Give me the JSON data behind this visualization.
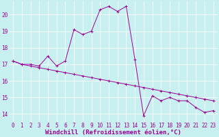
{
  "xlabel": "Windchill (Refroidissement éolien,°C)",
  "ylabel": "",
  "background_color": "#c8f0f0",
  "grid_color": "#ffffff",
  "line_color": "#990099",
  "xlim": [
    -0.5,
    23.5
  ],
  "ylim": [
    13.5,
    20.8
  ],
  "xticks": [
    0,
    1,
    2,
    3,
    4,
    5,
    6,
    7,
    8,
    9,
    10,
    11,
    12,
    13,
    14,
    15,
    16,
    17,
    18,
    19,
    20,
    21,
    22,
    23
  ],
  "yticks": [
    14,
    15,
    16,
    17,
    18,
    19,
    20
  ],
  "series1_x": [
    0,
    1,
    2,
    3,
    4,
    5,
    6,
    7,
    8,
    9,
    10,
    11,
    12,
    13,
    14,
    15,
    16,
    17,
    18,
    19,
    20,
    21,
    22,
    23
  ],
  "series1_y": [
    17.2,
    17.0,
    17.0,
    16.9,
    17.5,
    16.9,
    17.2,
    19.1,
    18.8,
    19.0,
    20.3,
    20.5,
    20.2,
    20.5,
    17.3,
    13.9,
    15.1,
    14.8,
    15.0,
    14.8,
    14.8,
    14.4,
    14.1,
    14.2
  ],
  "series2_x": [
    0,
    1,
    2,
    3,
    4,
    5,
    6,
    7,
    8,
    9,
    10,
    11,
    12,
    13,
    14,
    15,
    16,
    17,
    18,
    19,
    20,
    21,
    22,
    23
  ],
  "series2_y": [
    17.2,
    17.0,
    16.9,
    16.8,
    16.7,
    16.6,
    16.5,
    16.4,
    16.3,
    16.2,
    16.1,
    16.0,
    15.9,
    15.8,
    15.7,
    15.6,
    15.5,
    15.4,
    15.3,
    15.2,
    15.1,
    15.0,
    14.9,
    14.8
  ],
  "tick_fontsize": 5.5,
  "xlabel_fontsize": 6.5
}
